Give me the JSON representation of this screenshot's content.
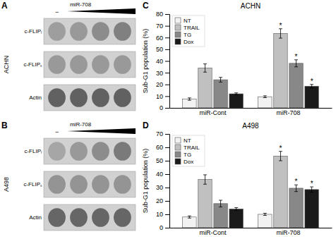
{
  "chart_data": [
    {
      "type": "blot",
      "ylabel": "ACHN",
      "annotations": [
        "A",
        "miR-708",
        "−"
      ],
      "categories": [
        "c-FLIPₗ",
        "c-FLIPₛ",
        "Actin"
      ],
      "cells": [
        [
          0.62,
          0.6,
          0.55,
          0.5
        ],
        [
          0.6,
          0.6,
          0.6,
          0.6
        ],
        [
          0.38,
          0.38,
          0.38,
          0.38
        ]
      ]
    },
    {
      "type": "blot",
      "ylabel": "A498",
      "annotations": [
        "B",
        "miR-708",
        "−"
      ],
      "categories": [
        "c-FLIPₗ",
        "c-FLIPₛ",
        "Actin"
      ],
      "cells": [
        [
          0.65,
          0.6,
          0.55,
          0.48
        ],
        [
          0.58,
          0.58,
          0.58,
          0.58
        ],
        [
          0.4,
          0.4,
          0.4,
          0.4
        ]
      ]
    },
    {
      "type": "bar",
      "title": "ACHN",
      "ylabel": "Sub-G1 population (%)",
      "annotations": [
        "C"
      ],
      "categories": [
        "miR-Cont",
        "miR-708"
      ],
      "ylim": [
        0,
        80
      ],
      "yticks": [
        0,
        10,
        20,
        30,
        40,
        50,
        60,
        70,
        80
      ],
      "legend": "upper left",
      "series": [
        {
          "name": "NT",
          "color": "#f2f2f2",
          "values": [
            7.5,
            9.5
          ],
          "errors": [
            1.0,
            0.8
          ],
          "significance": [
            null,
            null
          ]
        },
        {
          "name": "TRAIL",
          "color": "#c0c0c0",
          "values": [
            34.0,
            63.5
          ],
          "errors": [
            3.5,
            4.0
          ],
          "significance": [
            null,
            "*"
          ]
        },
        {
          "name": "TG",
          "color": "#888888",
          "values": [
            24.0,
            38.0
          ],
          "errors": [
            2.0,
            3.0
          ],
          "significance": [
            null,
            "*"
          ]
        },
        {
          "name": "Dox",
          "color": "#1a1a1a",
          "values": [
            12.0,
            18.5
          ],
          "errors": [
            0.8,
            1.5
          ],
          "significance": [
            null,
            "*"
          ]
        }
      ]
    },
    {
      "type": "bar",
      "title": "A498",
      "ylabel": "Sub-G1 population (%)",
      "annotations": [
        "D"
      ],
      "categories": [
        "miR-Cont",
        "miR-708"
      ],
      "ylim": [
        0,
        70
      ],
      "yticks": [
        0,
        10,
        20,
        30,
        40,
        50,
        60,
        70
      ],
      "legend": "upper left",
      "series": [
        {
          "name": "NT",
          "color": "#f2f2f2",
          "values": [
            8.0,
            10.0
          ],
          "errors": [
            0.8,
            0.8
          ],
          "significance": [
            null,
            null
          ]
        },
        {
          "name": "TRAIL",
          "color": "#c0c0c0",
          "values": [
            36.0,
            53.5
          ],
          "errors": [
            3.5,
            3.5
          ],
          "significance": [
            null,
            "*"
          ]
        },
        {
          "name": "TG",
          "color": "#888888",
          "values": [
            18.0,
            29.5
          ],
          "errors": [
            2.5,
            2.5
          ],
          "significance": [
            null,
            "*"
          ]
        },
        {
          "name": "Dox",
          "color": "#1a1a1a",
          "values": [
            14.0,
            28.5
          ],
          "errors": [
            1.0,
            2.0
          ],
          "significance": [
            null,
            "*"
          ]
        }
      ]
    }
  ]
}
